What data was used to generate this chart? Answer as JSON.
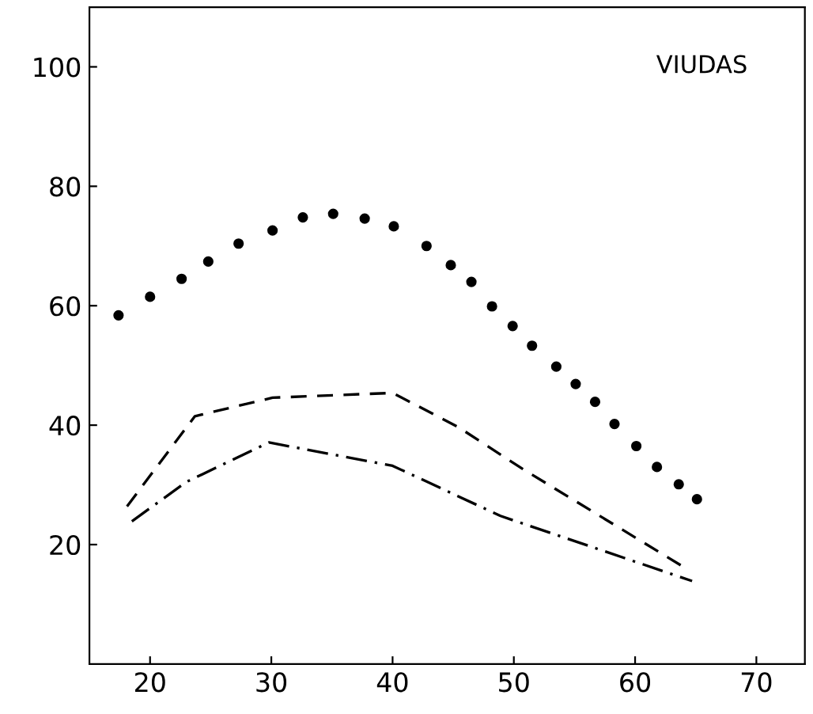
{
  "chart_data": {
    "type": "line",
    "annotations": [
      "VIUDAS"
    ],
    "xlim": [
      15,
      74
    ],
    "ylim": [
      0,
      110
    ],
    "xticks": [
      20,
      30,
      40,
      50,
      60,
      70
    ],
    "yticks": [
      20,
      40,
      60,
      80,
      100
    ],
    "grid": false,
    "legend": false,
    "series": [
      {
        "type": "scatter",
        "color": "#000000",
        "marker": "circle",
        "x": [
          17.4,
          20.0,
          22.6,
          24.8,
          27.3,
          30.1,
          32.6,
          35.1,
          37.7,
          40.1,
          42.8,
          44.8,
          46.5,
          48.2,
          49.9,
          51.5,
          53.5,
          55.1,
          56.7,
          58.3,
          60.1,
          61.8,
          63.6,
          65.1
        ],
        "values": [
          58.4,
          61.5,
          64.5,
          67.4,
          70.4,
          72.6,
          74.8,
          75.4,
          74.6,
          73.3,
          70.0,
          66.8,
          64.0,
          59.9,
          56.6,
          53.3,
          49.8,
          46.9,
          43.9,
          40.2,
          36.5,
          33.0,
          30.1,
          27.6
        ]
      },
      {
        "color": "#000000",
        "marker": "none",
        "line_style": "dashed",
        "x": [
          18.1,
          23.7,
          30.1,
          40.0,
          45.4,
          50.7,
          63.8
        ],
        "values": [
          26.4,
          41.5,
          44.6,
          45.4,
          39.7,
          32.7,
          16.5
        ]
      },
      {
        "color": "#000000",
        "marker": "none",
        "line_style": "dashdot",
        "x": [
          18.5,
          23.0,
          29.8,
          40.0,
          48.9,
          64.7
        ],
        "values": [
          23.9,
          30.5,
          37.1,
          33.2,
          24.8,
          13.9
        ]
      }
    ]
  }
}
